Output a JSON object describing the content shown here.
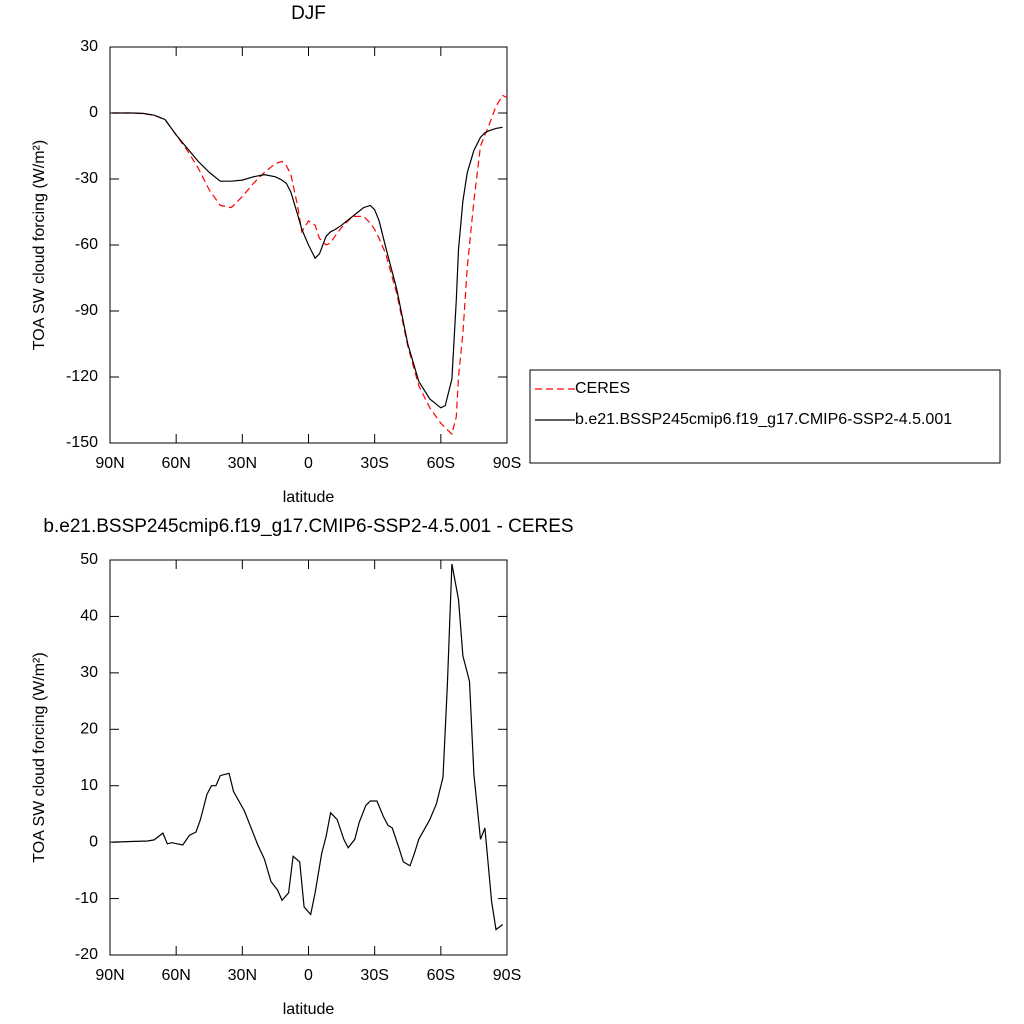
{
  "chart_data": [
    {
      "type": "line",
      "title": "DJF",
      "xlabel": "latitude",
      "ylabel": "TOA SW cloud forcing (W/m²)",
      "xlim": [
        90,
        -90
      ],
      "xticks": [
        {
          "value": 90,
          "label": "90N"
        },
        {
          "value": 60,
          "label": "60N"
        },
        {
          "value": 30,
          "label": "30N"
        },
        0,
        {
          "value": -30,
          "label": "30S"
        },
        {
          "value": -60,
          "label": "60S"
        },
        {
          "value": -90,
          "label": "90S"
        }
      ],
      "ylim": [
        -150,
        30
      ],
      "yticks": [
        30,
        0,
        -30,
        -60,
        -90,
        -120,
        -150
      ],
      "legend": "right",
      "x": [
        89,
        85,
        80,
        75,
        70,
        65,
        60,
        55,
        50,
        45,
        40,
        35,
        30,
        25,
        20,
        15,
        12,
        10,
        8,
        5,
        3,
        0,
        -3,
        -5,
        -8,
        -10,
        -12,
        -15,
        -20,
        -25,
        -28,
        -30,
        -32,
        -35,
        -40,
        -45,
        -50,
        -55,
        -60,
        -62,
        -65,
        -67,
        -68,
        -70,
        -72,
        -75,
        -78,
        -80,
        -82,
        -85,
        -88,
        -90
      ],
      "series": [
        {
          "name": "CERES",
          "color": "#ff0000",
          "style": "dashed",
          "values": [
            0,
            0,
            0,
            -0.3,
            -1,
            -3,
            -10,
            -17,
            -25,
            -35,
            -42,
            -43,
            -38,
            -32,
            -27,
            -23,
            -22,
            -24,
            -28,
            -42,
            -54,
            -49,
            -51,
            -57,
            -60,
            -59,
            -56,
            -52,
            -47,
            -47,
            -50,
            -53,
            -57,
            -64,
            -82,
            -106,
            -124,
            -134,
            -141,
            -143,
            -146,
            -138,
            -120,
            -100,
            -70,
            -40,
            -15,
            -10,
            -5,
            3,
            8,
            7
          ]
        },
        {
          "name": "b.e21.BSSP245cmip6.f19_g17.CMIP6-SSP2-4.5.001",
          "color": "#000000",
          "style": "solid",
          "values": [
            0,
            0,
            0,
            -0.2,
            -1,
            -3,
            -10,
            -16,
            -22,
            -27,
            -31,
            -31,
            -30.5,
            -29,
            -28,
            -29,
            -30.5,
            -32,
            -36,
            -46,
            -53,
            -60,
            -66,
            -64,
            -56,
            -54,
            -53,
            -51,
            -47,
            -43,
            -42,
            -44,
            -49,
            -61,
            -80,
            -105,
            -122,
            -130,
            -134,
            -133,
            -121,
            -85,
            -62,
            -40,
            -27,
            -17,
            -11,
            -9,
            -8,
            -7,
            -6.5,
            null
          ]
        }
      ]
    },
    {
      "type": "line",
      "title": "b.e21.BSSP245cmip6.f19_g17.CMIP6-SSP2-4.5.001 - CERES",
      "xlabel": "latitude",
      "ylabel": "TOA SW cloud forcing (W/m²)",
      "xlim": [
        90,
        -90
      ],
      "xticks": [
        {
          "value": 90,
          "label": "90N"
        },
        {
          "value": 60,
          "label": "60N"
        },
        {
          "value": 30,
          "label": "30N"
        },
        0,
        {
          "value": -30,
          "label": "30S"
        },
        {
          "value": -60,
          "label": "60S"
        },
        {
          "value": -90,
          "label": "90S"
        }
      ],
      "ylim": [
        -20,
        50
      ],
      "yticks": [
        50,
        40,
        30,
        20,
        10,
        0,
        -10,
        -20
      ],
      "x": [
        89,
        73,
        70,
        66,
        64,
        62,
        57,
        54,
        51,
        49,
        46,
        44,
        42,
        40,
        36,
        34,
        29,
        23,
        20,
        17,
        14,
        12,
        9,
        7,
        4,
        2,
        -1,
        -3,
        -6,
        -8,
        -10,
        -13,
        -16,
        -18,
        -21,
        -23,
        -26,
        -28,
        -31,
        -34,
        -36,
        -38,
        -41,
        -43,
        -46,
        -48,
        -50,
        -55,
        -58,
        -61,
        -63,
        -65,
        -68,
        -70,
        -73,
        -75,
        -78,
        -80,
        -83,
        -85,
        -88
      ],
      "series": [
        {
          "color": "#000000",
          "style": "solid",
          "values": [
            0,
            0.2,
            0.4,
            1.6,
            -0.3,
            -0.1,
            -0.5,
            1.2,
            1.8,
            4,
            8.5,
            10,
            10,
            11.8,
            12.2,
            9,
            5.5,
            -0.5,
            -3,
            -7,
            -8.5,
            -10.3,
            -9,
            -2.5,
            -3.5,
            -11.5,
            -12.8,
            -9,
            -2,
            1,
            5.2,
            4,
            0.5,
            -1,
            0.5,
            3.5,
            6.5,
            7.3,
            7.3,
            4.5,
            3,
            2.5,
            -1,
            -3.5,
            -4.2,
            -2,
            0.5,
            4,
            6.8,
            11.5,
            28,
            49.3,
            43,
            33,
            28.5,
            12,
            0.5,
            2.5,
            -10.5,
            -15.5,
            -14.6
          ]
        }
      ]
    }
  ]
}
